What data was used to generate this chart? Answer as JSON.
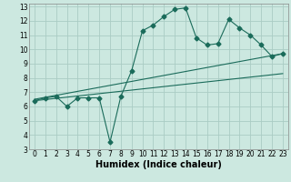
{
  "title": "",
  "xlabel": "Humidex (Indice chaleur)",
  "bg_color": "#cce8e0",
  "grid_color": "#aaccc4",
  "line_color": "#1a6b5a",
  "xlim": [
    -0.5,
    23.5
  ],
  "ylim": [
    3,
    13.2
  ],
  "xticks": [
    0,
    1,
    2,
    3,
    4,
    5,
    6,
    7,
    8,
    9,
    10,
    11,
    12,
    13,
    14,
    15,
    16,
    17,
    18,
    19,
    20,
    21,
    22,
    23
  ],
  "yticks": [
    3,
    4,
    5,
    6,
    7,
    8,
    9,
    10,
    11,
    12,
    13
  ],
  "series1_x": [
    0,
    1,
    2,
    3,
    4,
    5,
    6,
    7,
    8,
    9,
    10,
    11,
    12,
    13,
    14,
    15,
    16,
    17,
    18,
    19,
    20,
    21,
    22,
    23
  ],
  "series1_y": [
    6.4,
    6.6,
    6.7,
    6.0,
    6.6,
    6.6,
    6.6,
    3.5,
    6.7,
    8.5,
    11.3,
    11.7,
    12.3,
    12.8,
    12.9,
    10.8,
    10.3,
    10.4,
    12.1,
    11.5,
    11.0,
    10.3,
    9.5,
    9.7
  ],
  "series2_x": [
    0,
    23
  ],
  "series2_y": [
    6.5,
    9.7
  ],
  "series3_x": [
    0,
    23
  ],
  "series3_y": [
    6.4,
    8.3
  ],
  "marker_size": 2.5,
  "tick_fontsize": 5.5,
  "xlabel_fontsize": 7
}
